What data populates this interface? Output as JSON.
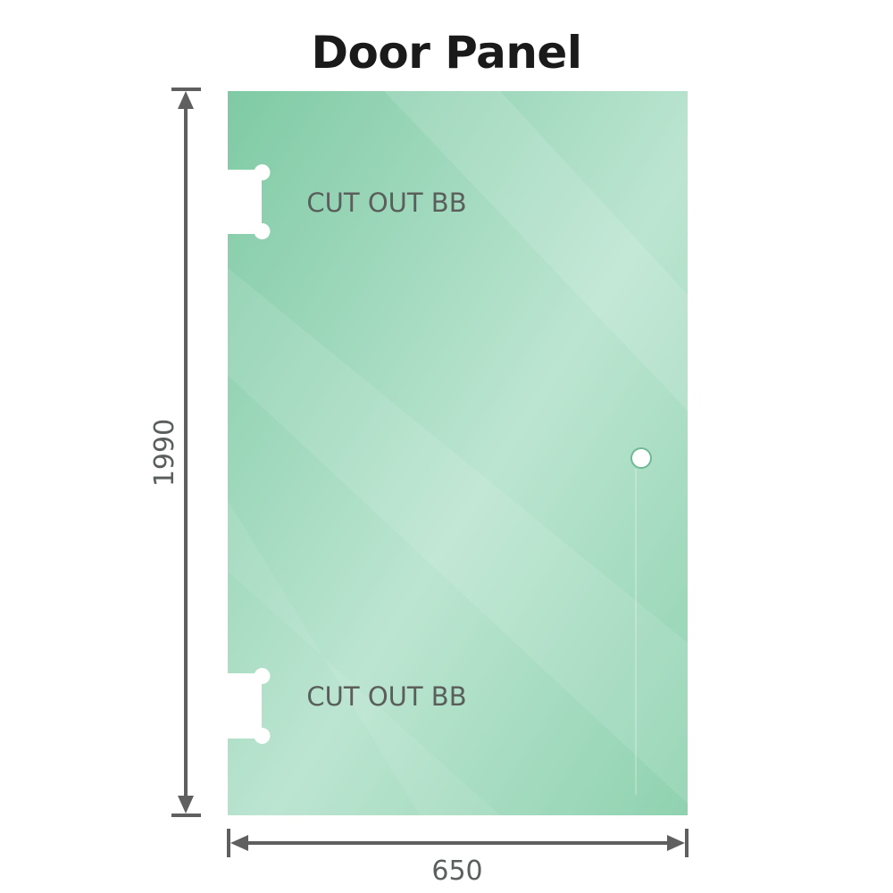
{
  "title": "Door Panel",
  "cutout_labels": [
    "CUT OUT BB",
    "CUT OUT BB"
  ],
  "dimensions": {
    "height": "1990",
    "width": "650"
  },
  "colors": {
    "glass": "#86cfab",
    "glass_light": "#bde6d2",
    "dimension_line": "#5f5f5f",
    "text": "#5a5f5c"
  }
}
